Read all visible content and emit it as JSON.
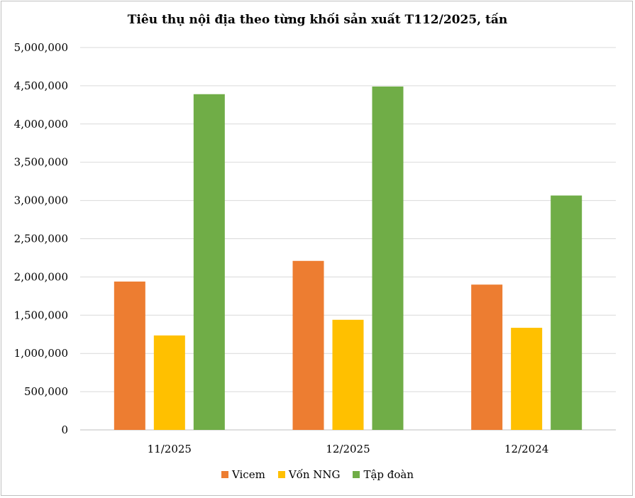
{
  "chart_data": {
    "type": "bar",
    "title": "Tiêu thụ nội địa theo từng khối sản xuất T112/2025,  tấn",
    "xlabel": "",
    "ylabel": "",
    "categories": [
      "11/2025",
      "12/2025",
      "12/2024"
    ],
    "series": [
      {
        "name": "Vicem",
        "color": "#ed7d31",
        "values": [
          1940000,
          2210000,
          1900000
        ]
      },
      {
        "name": "Vốn NNG",
        "color": "#ffc000",
        "values": [
          1235000,
          1440000,
          1335000
        ]
      },
      {
        "name": "Tập đoàn",
        "color": "#70ad47",
        "values": [
          4390000,
          4490000,
          3065000
        ]
      }
    ],
    "ylim": [
      0,
      5000000
    ],
    "yticks": [
      0,
      500000,
      1000000,
      1500000,
      2000000,
      2500000,
      3000000,
      3500000,
      4000000,
      4500000,
      5000000
    ],
    "ytick_labels": [
      "0",
      "500,000",
      "1,000,000",
      "1,500,000",
      "2,000,000",
      "2,500,000",
      "3,000,000",
      "3,500,000",
      "4,000,000",
      "4,500,000",
      "5,000,000"
    ],
    "grid": true,
    "gridline_color": "#d9d9d9",
    "legend_position": "bottom"
  }
}
